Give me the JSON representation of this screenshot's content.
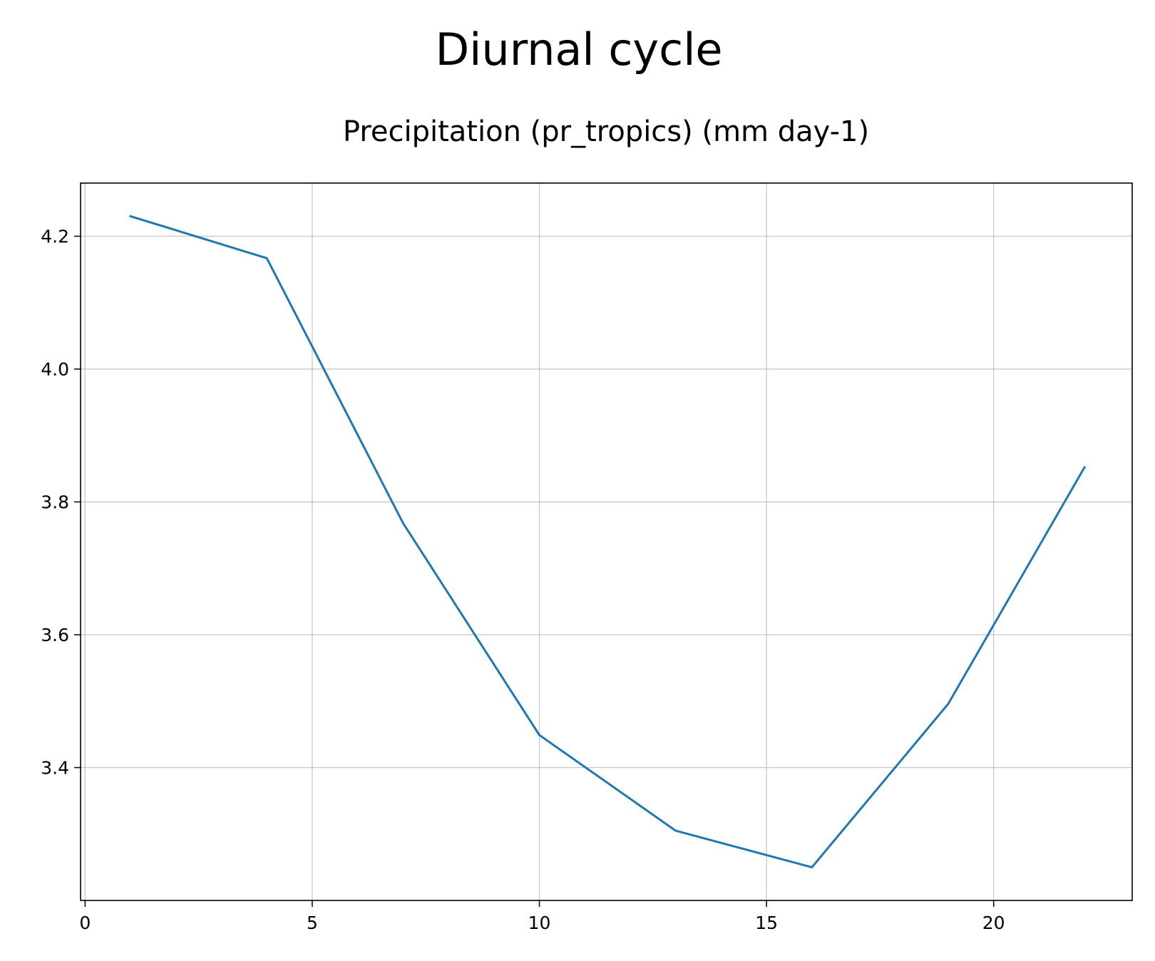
{
  "title": "Diurnal cycle",
  "subtitle": "Precipitation (pr_tropics) (mm day-1)",
  "colors": {
    "line": "#1f77b4",
    "grid": "#b0b0b0",
    "axes": "#000000",
    "background": "#ffffff"
  },
  "chart_data": {
    "type": "line",
    "title": "Diurnal cycle",
    "subtitle": "Precipitation (pr_tropics) (mm day-1)",
    "xlabel": "",
    "ylabel": "",
    "xlim": [
      -0.1,
      23.05
    ],
    "ylim": [
      3.2,
      4.28
    ],
    "grid": true,
    "legend": "none",
    "xticks": [
      0,
      5,
      10,
      15,
      20
    ],
    "xtick_labels": [
      "0",
      "5",
      "10",
      "15",
      "20"
    ],
    "yticks": [
      3.4,
      3.6,
      3.8,
      4.0,
      4.2
    ],
    "ytick_labels": [
      "3.4",
      "3.6",
      "3.8",
      "4.0",
      "4.2"
    ],
    "series": [
      {
        "x": [
          1,
          4,
          7,
          10,
          13,
          16,
          19,
          22
        ],
        "values": [
          4.23,
          4.167,
          3.768,
          3.449,
          3.305,
          3.25,
          3.496,
          3.852
        ]
      }
    ]
  }
}
